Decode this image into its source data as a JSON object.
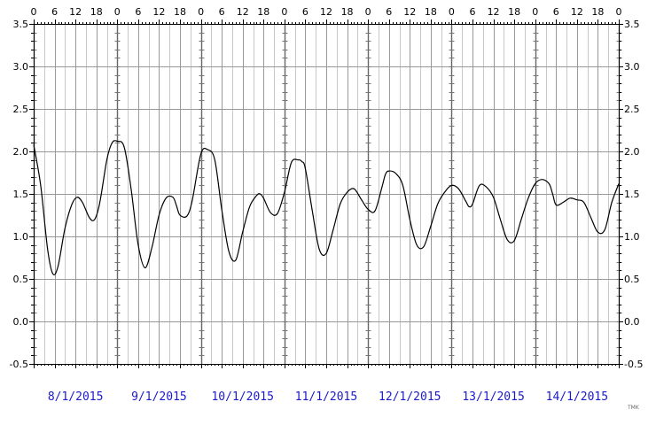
{
  "chart_data": {
    "type": "line",
    "x_unit": "hours since start of 8/1/2015",
    "xlim": [
      0,
      168
    ],
    "ylim": [
      -0.5,
      3.5
    ],
    "y_ticks": [
      -0.5,
      0.0,
      0.5,
      1.0,
      1.5,
      2.0,
      2.5,
      3.0,
      3.5
    ],
    "y_tick_labels": [
      "-0.5",
      "0.0",
      "0.5",
      "1.0",
      "1.5",
      "2.0",
      "2.5",
      "3.0",
      "3.5"
    ],
    "hour_tick_labels": [
      "0",
      "6",
      "12",
      "18"
    ],
    "date_labels": [
      "8/1/2015",
      "9/1/2015",
      "10/1/2015",
      "11/1/2015",
      "12/1/2015",
      "13/1/2015",
      "14/1/2015"
    ],
    "grid": true,
    "watermark": "TMK",
    "series": [
      {
        "x": [
          0,
          2,
          4,
          5.5,
          7,
          9,
          11,
          12.5,
          14,
          16,
          17.5,
          19,
          21,
          22.5,
          24,
          26,
          28,
          30,
          32,
          34,
          36,
          38,
          40,
          41,
          42,
          44,
          45.5,
          48,
          50,
          52,
          54,
          56,
          58,
          60,
          62,
          64,
          65,
          66,
          68,
          70,
          72,
          74,
          76,
          77,
          78,
          80,
          82,
          84,
          86,
          88,
          90,
          92,
          94,
          96,
          98,
          100,
          101,
          102,
          104,
          106,
          108,
          110,
          112,
          114,
          116,
          118,
          120,
          122,
          124,
          125,
          126,
          128,
          130,
          132,
          134,
          136,
          138,
          140,
          142,
          144,
          146,
          148,
          149,
          150,
          152,
          154,
          156,
          158,
          160,
          162,
          164,
          166,
          168
        ],
        "y": [
          2.08,
          1.6,
          0.85,
          0.56,
          0.65,
          1.1,
          1.38,
          1.46,
          1.4,
          1.22,
          1.2,
          1.4,
          1.9,
          2.1,
          2.12,
          2.05,
          1.55,
          0.9,
          0.63,
          0.88,
          1.25,
          1.45,
          1.46,
          1.36,
          1.25,
          1.24,
          1.42,
          1.97,
          2.02,
          1.9,
          1.32,
          0.83,
          0.72,
          1.05,
          1.35,
          1.48,
          1.5,
          1.45,
          1.28,
          1.27,
          1.52,
          1.87,
          1.9,
          1.88,
          1.8,
          1.3,
          0.85,
          0.8,
          1.08,
          1.38,
          1.52,
          1.56,
          1.44,
          1.32,
          1.3,
          1.58,
          1.73,
          1.77,
          1.74,
          1.6,
          1.2,
          0.9,
          0.88,
          1.12,
          1.38,
          1.52,
          1.6,
          1.56,
          1.42,
          1.35,
          1.38,
          1.6,
          1.58,
          1.46,
          1.2,
          0.96,
          0.95,
          1.2,
          1.45,
          1.62,
          1.67,
          1.62,
          1.5,
          1.37,
          1.4,
          1.45,
          1.43,
          1.4,
          1.22,
          1.05,
          1.08,
          1.4,
          1.62
        ]
      }
    ]
  }
}
